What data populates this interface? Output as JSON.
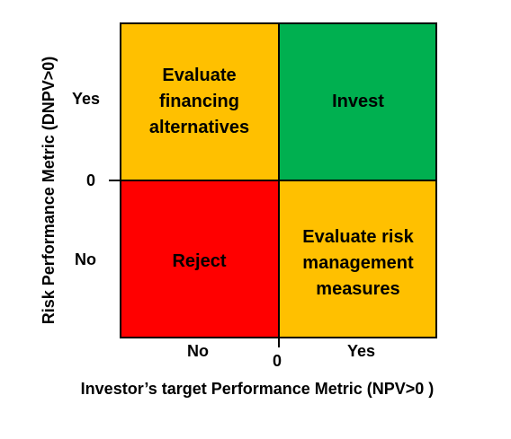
{
  "quadrants": {
    "top_left": {
      "lines": [
        "Evaluate",
        "financing",
        "alternatives"
      ],
      "color": "#ffc000"
    },
    "top_right": {
      "lines": [
        "Invest"
      ],
      "color": "#00b050"
    },
    "bottom_left": {
      "lines": [
        "Reject"
      ],
      "color": "#ff0000"
    },
    "bottom_right": {
      "lines": [
        "Evaluate risk",
        "management",
        "measures"
      ],
      "color": "#ffc000"
    }
  },
  "y_axis": {
    "title": "Risk Performance Metric (DNPV>0)",
    "yes": "Yes",
    "zero": "0",
    "no": "No"
  },
  "x_axis": {
    "title": "Investor’s target Performance Metric (NPV>0 )",
    "no": "No",
    "zero": "0",
    "yes": "Yes"
  }
}
